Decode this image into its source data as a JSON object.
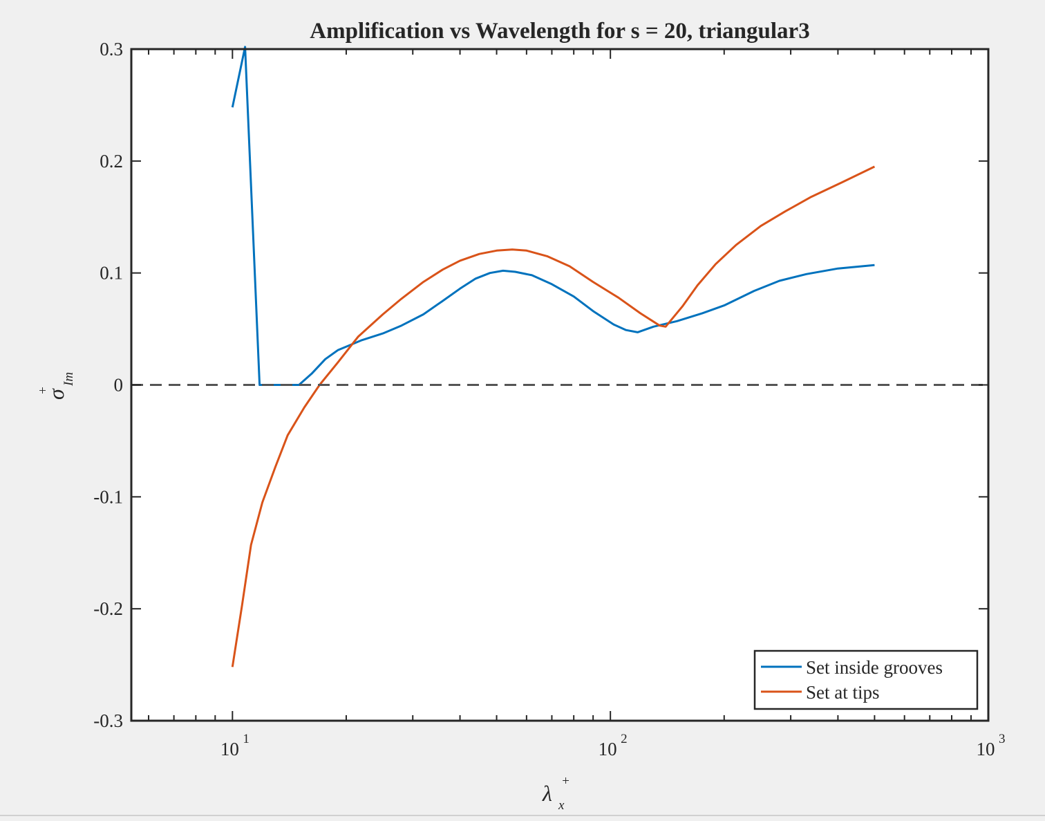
{
  "chart_data": {
    "type": "line",
    "title": "Amplification vs Wavelength for s = 20, triangular3",
    "xlabel": "λ",
    "xlabel_sup": "+",
    "xlabel_sub": "x",
    "ylabel": "σ",
    "ylabel_sup": "+",
    "ylabel_sub": "Im",
    "x_scale": "log",
    "xlim": [
      5.4,
      1000
    ],
    "ylim": [
      -0.3,
      0.3
    ],
    "x_ticks": [
      {
        "base": "10",
        "exp": "1",
        "value": 10
      },
      {
        "base": "10",
        "exp": "2",
        "value": 100
      },
      {
        "base": "10",
        "exp": "3",
        "value": 1000
      }
    ],
    "y_ticks": [
      {
        "label": "0.3",
        "value": 0.3
      },
      {
        "label": "0.2",
        "value": 0.2
      },
      {
        "label": "0.1",
        "value": 0.1
      },
      {
        "label": "0",
        "value": 0
      },
      {
        "label": "-0.1",
        "value": -0.1
      },
      {
        "label": "-0.2",
        "value": -0.2
      },
      {
        "label": "-0.3",
        "value": -0.3
      }
    ],
    "grid": false,
    "reference_line": {
      "y": 0,
      "style": "dashed",
      "color": "#555555"
    },
    "legend": "bottom-right",
    "series": [
      {
        "name": "Set inside grooves",
        "color": "#0072BD",
        "points": [
          [
            10,
            0.248
          ],
          [
            10.8,
            0.302
          ],
          [
            11.8,
            0.0
          ],
          [
            15,
            0.0
          ],
          [
            16.2,
            0.01
          ],
          [
            17.6,
            0.023
          ],
          [
            19,
            0.031
          ],
          [
            22,
            0.04
          ],
          [
            25,
            0.046
          ],
          [
            28,
            0.053
          ],
          [
            32,
            0.063
          ],
          [
            36,
            0.075
          ],
          [
            40,
            0.086
          ],
          [
            44,
            0.095
          ],
          [
            48,
            0.1
          ],
          [
            52,
            0.102
          ],
          [
            56,
            0.101
          ],
          [
            62,
            0.098
          ],
          [
            70,
            0.09
          ],
          [
            80,
            0.079
          ],
          [
            90,
            0.066
          ],
          [
            102,
            0.054
          ],
          [
            110,
            0.049
          ],
          [
            118,
            0.047
          ],
          [
            130,
            0.052
          ],
          [
            150,
            0.057
          ],
          [
            175,
            0.064
          ],
          [
            200,
            0.071
          ],
          [
            240,
            0.084
          ],
          [
            280,
            0.093
          ],
          [
            330,
            0.099
          ],
          [
            400,
            0.104
          ],
          [
            500,
            0.107
          ]
        ]
      },
      {
        "name": "Set at tips",
        "color": "#D95319",
        "points": [
          [
            10,
            -0.252
          ],
          [
            10.6,
            -0.197
          ],
          [
            11.2,
            -0.143
          ],
          [
            12,
            -0.105
          ],
          [
            13,
            -0.073
          ],
          [
            14,
            -0.045
          ],
          [
            15.5,
            -0.02
          ],
          [
            17,
            0.0
          ],
          [
            19,
            0.02
          ],
          [
            21.5,
            0.043
          ],
          [
            25,
            0.063
          ],
          [
            28,
            0.077
          ],
          [
            32,
            0.092
          ],
          [
            36,
            0.103
          ],
          [
            40,
            0.111
          ],
          [
            45,
            0.117
          ],
          [
            50,
            0.12
          ],
          [
            55,
            0.121
          ],
          [
            60,
            0.12
          ],
          [
            68,
            0.115
          ],
          [
            78,
            0.106
          ],
          [
            90,
            0.092
          ],
          [
            105,
            0.078
          ],
          [
            120,
            0.064
          ],
          [
            135,
            0.053
          ],
          [
            140,
            0.052
          ],
          [
            155,
            0.07
          ],
          [
            170,
            0.089
          ],
          [
            190,
            0.108
          ],
          [
            215,
            0.125
          ],
          [
            250,
            0.142
          ],
          [
            290,
            0.155
          ],
          [
            340,
            0.168
          ],
          [
            410,
            0.181
          ],
          [
            500,
            0.195
          ]
        ]
      }
    ]
  }
}
